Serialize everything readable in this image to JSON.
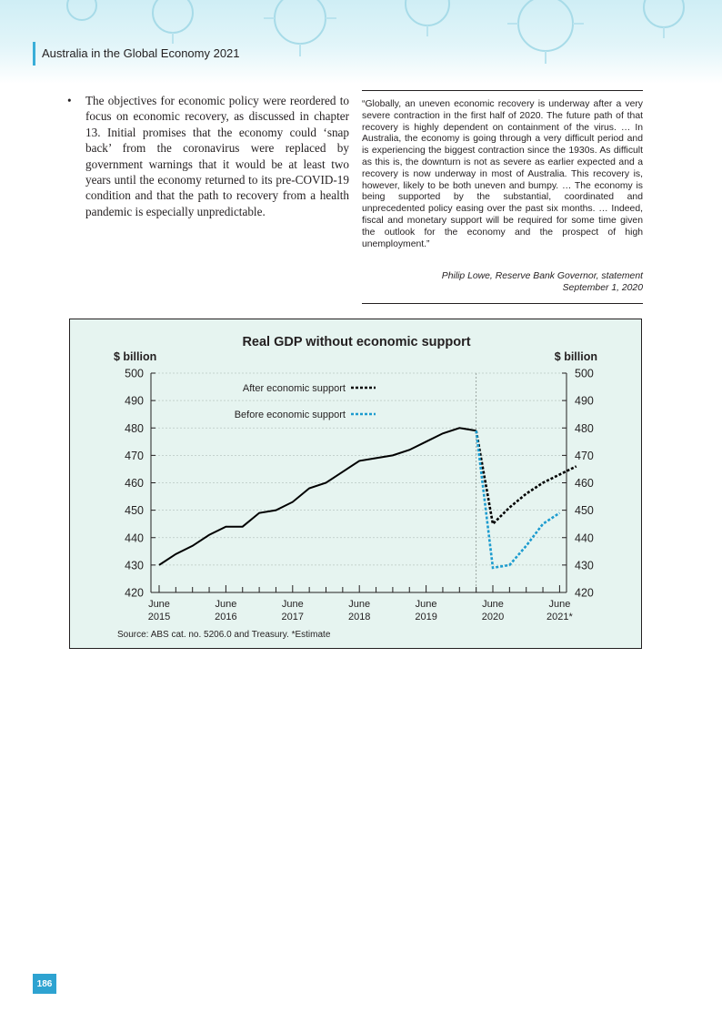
{
  "header": {
    "title": "Australia in the Global Economy 2021",
    "accent_color": "#3aaed8"
  },
  "bullet": {
    "icon": "bullet-dot",
    "text": "The objectives for economic policy were reordered to focus on economic recovery, as discussed in chapter 13. Initial promises that the economy could ‘snap back’ from the coronavirus were replaced by government warnings that it would be at least two years until the economy returned to its pre-COVID-19 condition and that the path to recovery from a health pandemic is especially unpredictable."
  },
  "quote": {
    "text": "“Globally, an uneven economic recovery is underway after a very severe contraction in the first half of 2020. The future path of that recovery is highly dependent on containment of the virus. … In Australia, the economy is going through a very difficult period and is experiencing the biggest contraction since the 1930s. As difficult as this is, the downturn is not as severe as earlier expected and a recovery is now underway in most of Australia. This recovery is, however, likely to be both uneven and bumpy. … The economy is being supported by the substantial, coordinated and unprecedented policy easing over the past six months. … Indeed, fiscal and monetary support will be required for some time given the outlook for the economy and the prospect of high unemployment.”",
    "attribution_line1": "Philip Lowe, Reserve Bank Governor, statement",
    "attribution_line2": "September 1, 2020"
  },
  "chart_data": {
    "type": "line",
    "title": "Real GDP without economic support",
    "ylabel_left": "$ billion",
    "ylabel_right": "$ billion",
    "ylim": [
      420,
      500
    ],
    "yticks": [
      420,
      430,
      440,
      450,
      460,
      470,
      480,
      490,
      500
    ],
    "grid": true,
    "legend_placement": "top-left",
    "xtick_labels": [
      {
        "line1": "June",
        "line2": "2015"
      },
      {
        "line1": "June",
        "line2": "2016"
      },
      {
        "line1": "June",
        "line2": "2017"
      },
      {
        "line1": "June",
        "line2": "2018"
      },
      {
        "line1": "June",
        "line2": "2019"
      },
      {
        "line1": "June",
        "line2": "2020"
      },
      {
        "line1": "June",
        "line2": "2021*"
      }
    ],
    "x_period": "quarterly",
    "history": {
      "color": "#000000",
      "values": [
        430,
        434,
        437,
        441,
        444,
        444,
        449,
        450,
        453,
        458,
        460,
        464,
        468,
        469,
        470,
        472,
        475,
        478,
        480,
        479
      ]
    },
    "series": [
      {
        "name": "After economic support",
        "color": "#000000",
        "dashed": true,
        "values": [
          479,
          445,
          451,
          456,
          460,
          463,
          466
        ]
      },
      {
        "name": "Before economic support",
        "color": "#1d9ccf",
        "dashed": true,
        "values": [
          479,
          429,
          430,
          437,
          445,
          449
        ]
      }
    ],
    "source": "Source:  ABS cat. no. 5206.0 and Treasury. *Estimate",
    "background": "#e6f4f0"
  },
  "page_number": "186"
}
